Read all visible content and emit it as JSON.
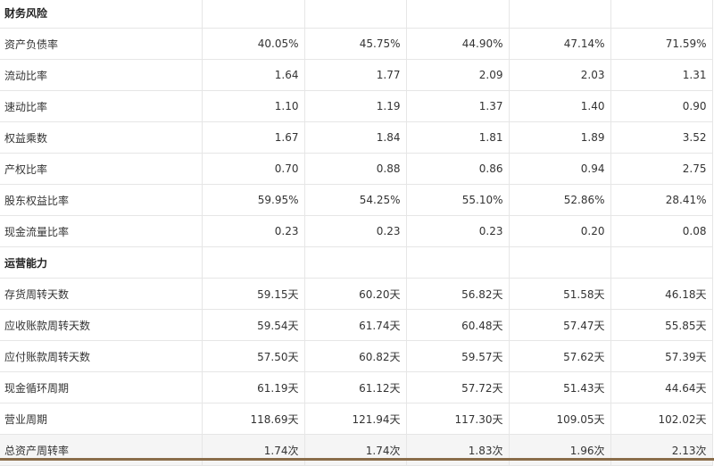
{
  "sections": [
    {
      "title": "财务风险",
      "rows": [
        {
          "label": "资产负债率",
          "values": [
            "40.05%",
            "45.75%",
            "44.90%",
            "47.14%",
            "71.59%"
          ]
        },
        {
          "label": "流动比率",
          "values": [
            "1.64",
            "1.77",
            "2.09",
            "2.03",
            "1.31"
          ]
        },
        {
          "label": "速动比率",
          "values": [
            "1.10",
            "1.19",
            "1.37",
            "1.40",
            "0.90"
          ]
        },
        {
          "label": "权益乘数",
          "values": [
            "1.67",
            "1.84",
            "1.81",
            "1.89",
            "3.52"
          ]
        },
        {
          "label": "产权比率",
          "values": [
            "0.70",
            "0.88",
            "0.86",
            "0.94",
            "2.75"
          ]
        },
        {
          "label": "股东权益比率",
          "values": [
            "59.95%",
            "54.25%",
            "55.10%",
            "52.86%",
            "28.41%"
          ]
        },
        {
          "label": "现金流量比率",
          "values": [
            "0.23",
            "0.23",
            "0.23",
            "0.20",
            "0.08"
          ]
        }
      ]
    },
    {
      "title": "运营能力",
      "rows": [
        {
          "label": "存货周转天数",
          "values": [
            "59.15天",
            "60.20天",
            "56.82天",
            "51.58天",
            "46.18天"
          ]
        },
        {
          "label": "应收账款周转天数",
          "values": [
            "59.54天",
            "61.74天",
            "60.48天",
            "57.47天",
            "55.85天"
          ]
        },
        {
          "label": "应付账款周转天数",
          "values": [
            "57.50天",
            "60.82天",
            "59.57天",
            "57.62天",
            "57.39天"
          ]
        },
        {
          "label": "现金循环周期",
          "values": [
            "61.19天",
            "61.12天",
            "57.72天",
            "51.43天",
            "44.64天"
          ]
        },
        {
          "label": "营业周期",
          "values": [
            "118.69天",
            "121.94天",
            "117.30天",
            "109.05天",
            "102.02天"
          ]
        },
        {
          "label": "总资产周转率",
          "values": [
            "1.74次",
            "1.74次",
            "1.83次",
            "1.96次",
            "2.13次"
          ]
        }
      ]
    }
  ]
}
